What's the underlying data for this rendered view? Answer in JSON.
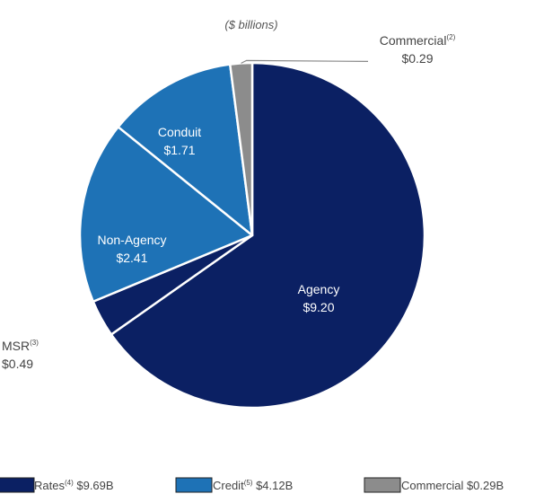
{
  "chart_data": {
    "type": "pie",
    "subtitle": "($ billions)",
    "slices": [
      {
        "id": "agency",
        "label": "Agency",
        "sup": "",
        "value_label": "$9.20",
        "value": 9.2,
        "color": "#0b2063",
        "label_pos": "inside"
      },
      {
        "id": "msr",
        "label": "MSR",
        "sup": "(3)",
        "value_label": "$0.49",
        "value": 0.49,
        "color": "#0b2063",
        "label_pos": "outside-left"
      },
      {
        "id": "non-agency",
        "label": "Non-Agency",
        "sup": "",
        "value_label": "$2.41",
        "value": 2.41,
        "color": "#1e72b6",
        "label_pos": "inside"
      },
      {
        "id": "conduit",
        "label": "Conduit",
        "sup": "",
        "value_label": "$1.71",
        "value": 1.71,
        "color": "#1e72b6",
        "label_pos": "inside"
      },
      {
        "id": "commercial",
        "label": "Commercial",
        "sup": "(2)",
        "value_label": "$0.29",
        "value": 0.29,
        "color": "#8c8c8c",
        "label_pos": "outside-top"
      }
    ],
    "legend": [
      {
        "id": "rates",
        "pre": "Rates",
        "sup": "(4)",
        "post": " $9.69B",
        "color": "#0b2063"
      },
      {
        "id": "credit",
        "pre": "Credit",
        "sup": "(5)",
        "post": " $4.12B",
        "color": "#1e72b6"
      },
      {
        "id": "commercial",
        "pre": "Commercial",
        "sup": "",
        "post": " $0.29B",
        "color": "#8c8c8c"
      }
    ],
    "legend_position": "bottom"
  }
}
